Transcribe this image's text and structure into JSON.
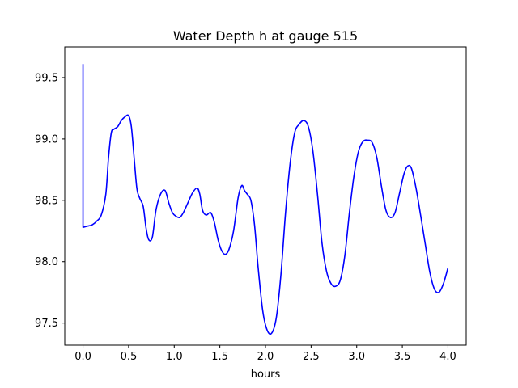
{
  "chart_data": {
    "type": "line",
    "title": "Water Depth h at gauge 515",
    "xlabel": "hours",
    "ylabel": "",
    "xlim": [
      -0.2,
      4.2
    ],
    "ylim": [
      97.32,
      99.75
    ],
    "xticks": [
      0.0,
      0.5,
      1.0,
      1.5,
      2.0,
      2.5,
      3.0,
      3.5,
      4.0
    ],
    "xtick_labels": [
      "0.0",
      "0.5",
      "1.0",
      "1.5",
      "2.0",
      "2.5",
      "3.0",
      "3.5",
      "4.0"
    ],
    "yticks": [
      97.5,
      98.0,
      98.5,
      99.0,
      99.5
    ],
    "ytick_labels": [
      "97.5",
      "98.0",
      "98.5",
      "99.0",
      "99.5"
    ],
    "grid": false,
    "legend": "none",
    "series": [
      {
        "color": "#0000ff",
        "x": [
          0.0,
          0.0,
          0.001,
          0.05,
          0.1,
          0.15,
          0.2,
          0.25,
          0.28,
          0.31,
          0.34,
          0.38,
          0.42,
          0.46,
          0.5,
          0.53,
          0.56,
          0.59,
          0.62,
          0.66,
          0.69,
          0.72,
          0.76,
          0.8,
          0.85,
          0.9,
          0.94,
          0.98,
          1.02,
          1.06,
          1.1,
          1.15,
          1.2,
          1.25,
          1.28,
          1.31,
          1.35,
          1.4,
          1.44,
          1.48,
          1.52,
          1.56,
          1.6,
          1.65,
          1.7,
          1.74,
          1.77,
          1.8,
          1.84,
          1.88,
          1.92,
          1.97,
          2.02,
          2.07,
          2.12,
          2.17,
          2.22,
          2.27,
          2.32,
          2.37,
          2.42,
          2.47,
          2.52,
          2.57,
          2.62,
          2.67,
          2.72,
          2.77,
          2.82,
          2.87,
          2.92,
          2.97,
          3.02,
          3.07,
          3.12,
          3.17,
          3.22,
          3.27,
          3.32,
          3.37,
          3.42,
          3.47,
          3.52,
          3.56,
          3.6,
          3.65,
          3.7,
          3.75,
          3.8,
          3.85,
          3.9,
          3.95,
          4.0
        ],
        "y": [
          99.61,
          98.28,
          98.28,
          98.29,
          98.3,
          98.33,
          98.38,
          98.55,
          98.85,
          99.05,
          99.08,
          99.1,
          99.15,
          99.18,
          99.19,
          99.1,
          98.85,
          98.6,
          98.52,
          98.45,
          98.28,
          98.18,
          98.2,
          98.42,
          98.55,
          98.58,
          98.48,
          98.4,
          98.37,
          98.36,
          98.4,
          98.48,
          98.56,
          98.6,
          98.55,
          98.42,
          98.38,
          98.4,
          98.32,
          98.18,
          98.09,
          98.06,
          98.1,
          98.25,
          98.52,
          98.62,
          98.58,
          98.55,
          98.5,
          98.3,
          97.95,
          97.6,
          97.44,
          97.42,
          97.55,
          97.9,
          98.4,
          98.8,
          99.05,
          99.12,
          99.15,
          99.1,
          98.9,
          98.55,
          98.15,
          97.92,
          97.82,
          97.8,
          97.85,
          98.05,
          98.4,
          98.7,
          98.9,
          98.98,
          98.99,
          98.97,
          98.85,
          98.62,
          98.42,
          98.36,
          98.4,
          98.56,
          98.72,
          98.78,
          98.76,
          98.6,
          98.38,
          98.15,
          97.92,
          97.78,
          97.75,
          97.82,
          97.95
        ]
      }
    ]
  }
}
